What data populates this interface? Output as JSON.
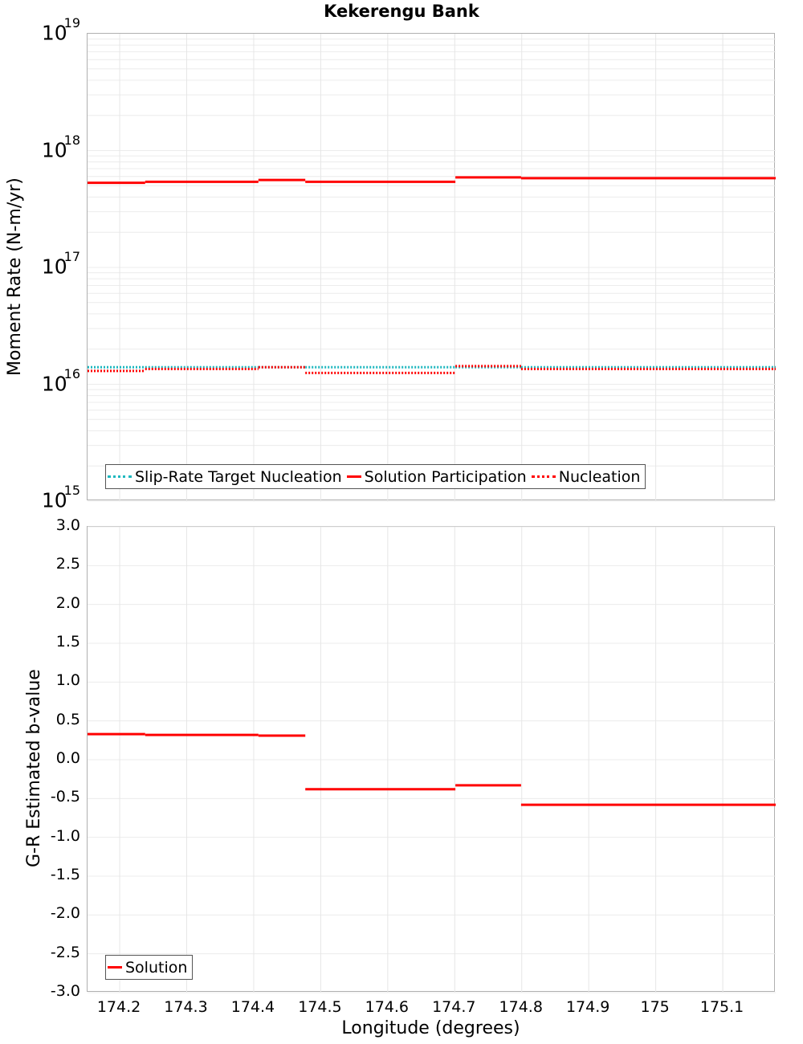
{
  "title": "Kekerengu Bank",
  "top_chart": {
    "ylabel": "Moment Rate (N-m/yr)",
    "yticks": [
      {
        "base": "10",
        "exp": "19",
        "log": 19
      },
      {
        "base": "10",
        "exp": "18",
        "log": 18
      },
      {
        "base": "10",
        "exp": "17",
        "log": 17
      },
      {
        "base": "10",
        "exp": "16",
        "log": 16
      },
      {
        "base": "10",
        "exp": "15",
        "log": 15
      }
    ],
    "legend": [
      {
        "label": "Slip-Rate Target Nucleation",
        "style": "dotted",
        "color": "#1fb8bf"
      },
      {
        "label": "Solution Participation",
        "style": "solid",
        "color": "#ff0000"
      },
      {
        "label": "Nucleation",
        "style": "dotted",
        "color": "#ff0000"
      }
    ]
  },
  "bottom_chart": {
    "ylabel": "G-R Estimated b-value",
    "yticks": [
      "3.0",
      "2.5",
      "2.0",
      "1.5",
      "1.0",
      "0.5",
      "0.0",
      "-0.5",
      "-1.0",
      "-1.5",
      "-2.0",
      "-2.5",
      "-3.0"
    ],
    "legend": [
      {
        "label": "Solution",
        "style": "solid",
        "color": "#ff0000"
      }
    ]
  },
  "xaxis": {
    "label": "Longitude (degrees)",
    "ticks": [
      "174.2",
      "174.3",
      "174.4",
      "174.5",
      "174.6",
      "174.7",
      "174.8",
      "174.9",
      "175",
      "175.1"
    ]
  },
  "chart_data": [
    {
      "type": "line",
      "title": "Kekerengu Bank",
      "xlabel": "Longitude (degrees)",
      "ylabel": "Moment Rate (N-m/yr)",
      "yscale": "log",
      "ylim": [
        1000000000000000.0,
        1e+19
      ],
      "xlim": [
        174.152,
        175.179
      ],
      "grid": true,
      "legend_position": "lower-left inside",
      "step_boundaries": [
        174.152,
        174.238,
        174.407,
        174.477,
        174.701,
        174.799,
        175.179
      ],
      "series": [
        {
          "name": "Slip-Rate Target Nucleation",
          "style": "dotted",
          "color": "#1fb8bf",
          "values": [
            1.4e+16,
            1.4e+16,
            1.4e+16,
            1.4e+16,
            1.4e+16,
            1.4e+16
          ]
        },
        {
          "name": "Solution Participation",
          "style": "solid",
          "color": "#ff0000",
          "values": [
            5.3e+17,
            5.4e+17,
            5.6e+17,
            5.4e+17,
            5.9e+17,
            5.8e+17
          ]
        },
        {
          "name": "Nucleation",
          "style": "dotted",
          "color": "#ff0000",
          "values": [
            1.3e+16,
            1.35e+16,
            1.4e+16,
            1.25e+16,
            1.43e+16,
            1.35e+16
          ]
        }
      ]
    },
    {
      "type": "line",
      "title": "",
      "xlabel": "Longitude (degrees)",
      "ylabel": "G-R Estimated b-value",
      "ylim": [
        -3.0,
        3.0
      ],
      "xlim": [
        174.152,
        175.179
      ],
      "grid": true,
      "legend_position": "lower-left inside",
      "step_boundaries": [
        174.152,
        174.238,
        174.407,
        174.477,
        174.701,
        174.799,
        175.179
      ],
      "series": [
        {
          "name": "Solution",
          "style": "solid",
          "color": "#ff0000",
          "values": [
            0.33,
            0.32,
            0.31,
            -0.38,
            -0.33,
            -0.58
          ]
        }
      ]
    }
  ]
}
